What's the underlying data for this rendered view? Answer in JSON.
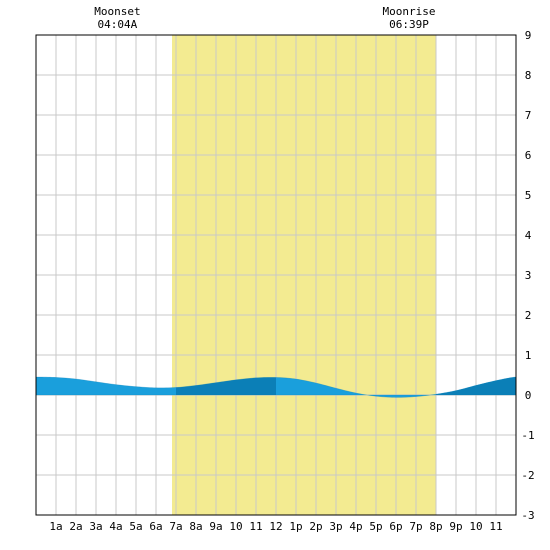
{
  "chart_data": {
    "type": "area",
    "annotations": [
      {
        "label": "Moonset",
        "time": "04:04A",
        "hour": 4.07
      },
      {
        "label": "Moonrise",
        "time": "06:39P",
        "hour": 18.65
      }
    ],
    "x_tick_labels": [
      "1a",
      "2a",
      "3a",
      "4a",
      "5a",
      "6a",
      "7a",
      "8a",
      "9a",
      "10",
      "11",
      "12",
      "1p",
      "2p",
      "3p",
      "4p",
      "5p",
      "6p",
      "7p",
      "8p",
      "9p",
      "10",
      "11"
    ],
    "xlim": [
      0,
      24
    ],
    "ylim": [
      -3,
      9
    ],
    "y_ticks": [
      9,
      8,
      7,
      6,
      5,
      4,
      3,
      2,
      1,
      0,
      -1,
      -2,
      -3
    ],
    "grid": true,
    "daylight": {
      "start_hour": 6.8,
      "end_hour": 20.0
    },
    "x": [
      0,
      1,
      2,
      3,
      4,
      5,
      6,
      7,
      8,
      9,
      10,
      11,
      12,
      13,
      14,
      15,
      16,
      17,
      18,
      19,
      20,
      21,
      22,
      23,
      24
    ],
    "y": [
      0.45,
      0.44,
      0.4,
      0.33,
      0.26,
      0.21,
      0.18,
      0.19,
      0.24,
      0.31,
      0.38,
      0.43,
      0.44,
      0.4,
      0.3,
      0.17,
      0.05,
      -0.03,
      -0.06,
      -0.04,
      0.02,
      0.11,
      0.24,
      0.36,
      0.45
    ],
    "colors": {
      "daylight": "#f3eb91",
      "tide_light": "#1a9fdc",
      "tide_dark": "#0b7fb7",
      "grid": "#c8c8c8",
      "frame": "#000000"
    }
  }
}
